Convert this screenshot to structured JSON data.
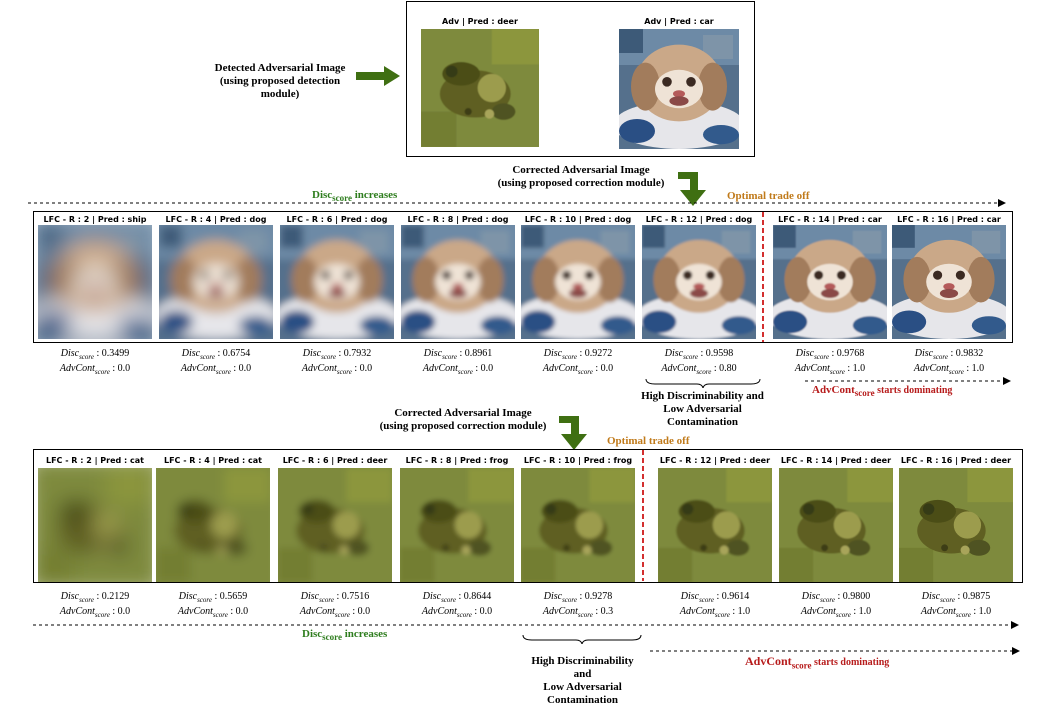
{
  "top": {
    "detected_label": [
      "Detected Adversarial Image",
      "(using proposed detection",
      "module)"
    ],
    "images": [
      {
        "title": "Adv | Pred : deer",
        "palette": "frog"
      },
      {
        "title": "Adv | Pred : car",
        "palette": "dog"
      }
    ]
  },
  "corrected_label": [
    "Corrected Adversarial Image",
    "(using proposed correction module)"
  ],
  "disc_word": "Disc",
  "disc_sub": "score",
  "increases_word": " increases",
  "optimal_trade_off": "Optimal trade off",
  "advcont_word": "AdvCont",
  "advcont_sub": "score",
  "starts_dominating": " starts dominating",
  "hd_note": [
    "High Discriminability and",
    "Low Adversarial",
    "Contamination"
  ],
  "hd_note2": [
    "High Discriminability",
    "and",
    "Low Adversarial",
    "Contamination"
  ],
  "score_labels": {
    "disc": "Disc",
    "adv": "AdvCont",
    "sub": "score"
  },
  "row1": {
    "panels": [
      {
        "title": "LFC - R : 2 | Pred : ship",
        "disc": "0.3499",
        "adv": "0.0",
        "blur": 9
      },
      {
        "title": "LFC - R : 4 | Pred : dog",
        "disc": "0.6754",
        "adv": "0.0",
        "blur": 5
      },
      {
        "title": "LFC - R : 6 | Pred : dog",
        "disc": "0.7932",
        "adv": "0.0",
        "blur": 3.5
      },
      {
        "title": "LFC - R : 8 | Pred : dog",
        "disc": "0.8961",
        "adv": "0.0",
        "blur": 2.5
      },
      {
        "title": "LFC - R : 10 | Pred : dog",
        "disc": "0.9272",
        "adv": "0.0",
        "blur": 1.8
      },
      {
        "title": "LFC - R : 12 | Pred : dog",
        "disc": "0.9598",
        "adv": "0.80",
        "blur": 1.2
      },
      {
        "title": "LFC - R : 14 | Pred : car",
        "disc": "0.9768",
        "adv": "1.0",
        "blur": 0.6
      },
      {
        "title": "LFC - R : 16 | Pred : car",
        "disc": "0.9832",
        "adv": "1.0",
        "blur": 0.3
      }
    ]
  },
  "row2": {
    "panels": [
      {
        "title": "LFC - R : 2 | Pred : cat",
        "disc": "0.2129",
        "adv": "0.0",
        "blur": 9
      },
      {
        "title": "LFC - R : 4 | Pred : cat",
        "disc": "0.5659",
        "adv": "0.0",
        "blur": 5
      },
      {
        "title": "LFC - R : 6 | Pred : deer",
        "disc": "0.7516",
        "adv": "0.0",
        "blur": 3
      },
      {
        "title": "LFC - R : 8 | Pred : frog",
        "disc": "0.8644",
        "adv": "0.0",
        "blur": 2.2
      },
      {
        "title": "LFC - R : 10 | Pred : frog",
        "disc": "0.9278",
        "adv": "0.3",
        "blur": 1.6
      },
      {
        "title": "LFC - R : 12 | Pred : deer",
        "disc": "0.9614",
        "adv": "1.0",
        "blur": 1
      },
      {
        "title": "LFC - R : 14 | Pred : deer",
        "disc": "0.9800",
        "adv": "1.0",
        "blur": 0.6
      },
      {
        "title": "LFC - R : 16 | Pred : deer",
        "disc": "0.9875",
        "adv": "1.0",
        "blur": 0.3
      }
    ]
  },
  "colors": {
    "green": "#2e7d1e",
    "red": "#b71c1c",
    "orange": "#c07a1a",
    "arrow_green": "#3f6f12"
  }
}
